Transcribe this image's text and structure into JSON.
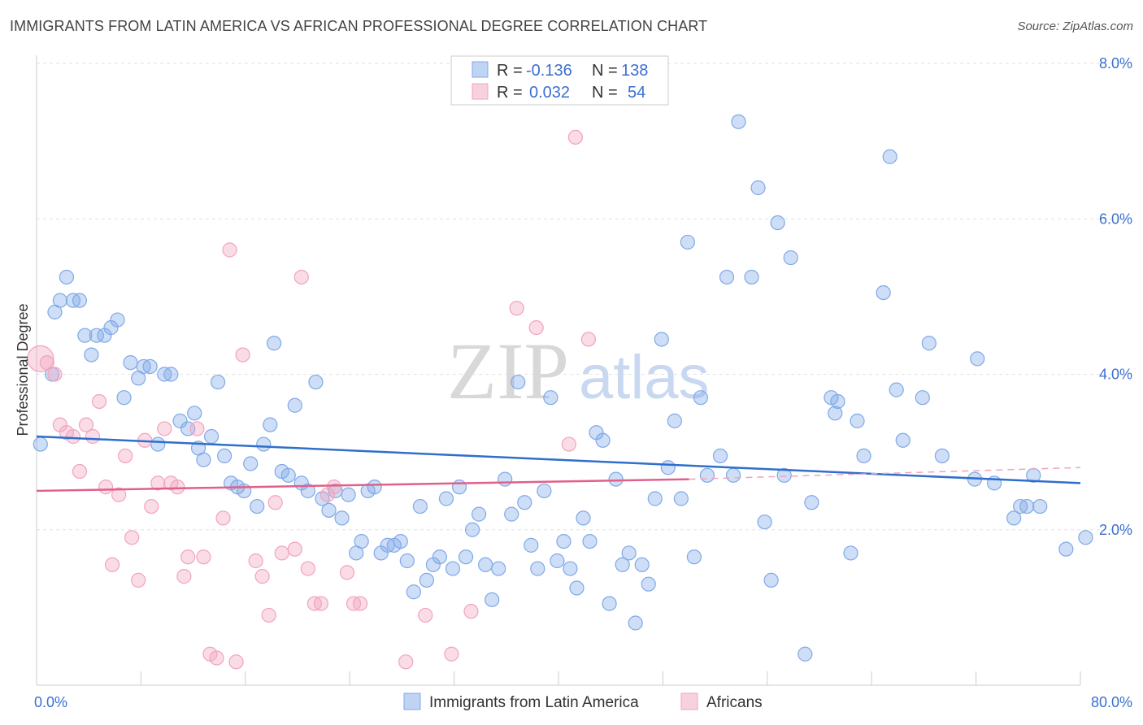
{
  "header": {
    "title": "IMMIGRANTS FROM LATIN AMERICA VS AFRICAN PROFESSIONAL DEGREE CORRELATION CHART",
    "source": "Source: ZipAtlas.com"
  },
  "watermark": {
    "part1": "ZIP",
    "part2": "atlas"
  },
  "legend_top": {
    "rows": [
      {
        "r_label": "R =",
        "r_value": "-0.136",
        "n_label": "N =",
        "n_value": "138",
        "color": "#7fa9e8"
      },
      {
        "r_label": "R =",
        "r_value": "0.032",
        "n_label": "N =",
        "n_value": "54",
        "color": "#f2a3bd"
      }
    ]
  },
  "chart_data": {
    "type": "scatter",
    "title": "IMMIGRANTS FROM LATIN AMERICA VS AFRICAN PROFESSIONAL DEGREE CORRELATION CHART",
    "xlabel": "",
    "ylabel": "Professional Degree",
    "xlim": [
      0,
      80
    ],
    "ylim": [
      0,
      8
    ],
    "x_tick_labels": [
      "0.0%",
      "80.0%"
    ],
    "y_ticks": [
      2,
      4,
      6,
      8
    ],
    "y_tick_labels": [
      "2.0%",
      "4.0%",
      "6.0%",
      "8.0%"
    ],
    "grid": true,
    "legend_position": "top-center",
    "series": [
      {
        "name": "Immigrants from Latin America",
        "color": "#7fa9e8",
        "line_color": "#2f6fcb",
        "trend": [
          [
            0,
            3.2
          ],
          [
            80,
            2.6
          ]
        ],
        "points": [
          [
            0.3,
            3.1
          ],
          [
            1.2,
            4.0
          ],
          [
            1.4,
            4.8
          ],
          [
            1.8,
            4.95
          ],
          [
            2.3,
            5.25
          ],
          [
            2.8,
            4.95
          ],
          [
            3.3,
            4.95
          ],
          [
            3.7,
            4.5
          ],
          [
            4.2,
            4.25
          ],
          [
            4.6,
            4.5
          ],
          [
            5.2,
            4.5
          ],
          [
            5.7,
            4.6
          ],
          [
            6.2,
            4.7
          ],
          [
            6.7,
            3.7
          ],
          [
            7.2,
            4.15
          ],
          [
            7.8,
            3.95
          ],
          [
            8.2,
            4.1
          ],
          [
            8.7,
            4.1
          ],
          [
            9.3,
            3.1
          ],
          [
            9.8,
            4.0
          ],
          [
            10.3,
            4.0
          ],
          [
            11.0,
            3.4
          ],
          [
            11.6,
            3.3
          ],
          [
            12.1,
            3.5
          ],
          [
            12.4,
            3.05
          ],
          [
            12.8,
            2.9
          ],
          [
            13.4,
            3.2
          ],
          [
            13.9,
            3.9
          ],
          [
            14.4,
            2.95
          ],
          [
            14.9,
            2.6
          ],
          [
            15.4,
            2.55
          ],
          [
            15.9,
            2.5
          ],
          [
            16.4,
            2.85
          ],
          [
            16.9,
            2.3
          ],
          [
            17.4,
            3.1
          ],
          [
            17.9,
            3.35
          ],
          [
            18.2,
            4.4
          ],
          [
            18.8,
            2.75
          ],
          [
            19.3,
            2.7
          ],
          [
            19.8,
            3.6
          ],
          [
            20.3,
            2.6
          ],
          [
            20.8,
            2.5
          ],
          [
            21.4,
            3.9
          ],
          [
            21.9,
            2.4
          ],
          [
            22.4,
            2.25
          ],
          [
            22.9,
            2.5
          ],
          [
            23.4,
            2.15
          ],
          [
            23.9,
            2.45
          ],
          [
            24.5,
            1.7
          ],
          [
            24.9,
            1.85
          ],
          [
            25.4,
            2.5
          ],
          [
            25.9,
            2.55
          ],
          [
            26.4,
            1.7
          ],
          [
            26.9,
            1.8
          ],
          [
            27.4,
            1.8
          ],
          [
            27.9,
            1.85
          ],
          [
            28.4,
            1.6
          ],
          [
            28.9,
            1.2
          ],
          [
            29.4,
            2.3
          ],
          [
            29.9,
            1.35
          ],
          [
            30.4,
            1.55
          ],
          [
            30.9,
            1.65
          ],
          [
            31.4,
            2.4
          ],
          [
            31.9,
            1.5
          ],
          [
            32.4,
            2.55
          ],
          [
            32.9,
            1.65
          ],
          [
            33.4,
            2.0
          ],
          [
            33.9,
            2.2
          ],
          [
            34.4,
            1.55
          ],
          [
            34.9,
            1.1
          ],
          [
            35.4,
            1.5
          ],
          [
            35.9,
            2.65
          ],
          [
            36.4,
            2.2
          ],
          [
            36.9,
            3.9
          ],
          [
            37.4,
            2.35
          ],
          [
            37.9,
            1.8
          ],
          [
            38.4,
            1.5
          ],
          [
            38.9,
            2.5
          ],
          [
            39.4,
            3.7
          ],
          [
            39.9,
            1.6
          ],
          [
            40.4,
            1.85
          ],
          [
            40.9,
            1.5
          ],
          [
            41.4,
            1.25
          ],
          [
            41.9,
            2.15
          ],
          [
            42.4,
            1.85
          ],
          [
            42.9,
            3.25
          ],
          [
            43.4,
            3.15
          ],
          [
            43.9,
            1.05
          ],
          [
            44.4,
            2.65
          ],
          [
            44.9,
            1.55
          ],
          [
            45.4,
            1.7
          ],
          [
            45.9,
            0.8
          ],
          [
            46.4,
            1.55
          ],
          [
            46.9,
            1.3
          ],
          [
            47.4,
            2.4
          ],
          [
            47.9,
            4.45
          ],
          [
            48.4,
            2.8
          ],
          [
            48.9,
            3.4
          ],
          [
            49.4,
            2.4
          ],
          [
            49.9,
            5.7
          ],
          [
            50.4,
            1.65
          ],
          [
            50.9,
            3.7
          ],
          [
            51.4,
            2.7
          ],
          [
            52.4,
            2.95
          ],
          [
            52.9,
            5.25
          ],
          [
            53.4,
            2.7
          ],
          [
            53.8,
            7.25
          ],
          [
            54.8,
            5.25
          ],
          [
            55.3,
            6.4
          ],
          [
            55.8,
            2.1
          ],
          [
            56.3,
            1.35
          ],
          [
            56.8,
            5.95
          ],
          [
            57.3,
            2.7
          ],
          [
            57.8,
            5.5
          ],
          [
            58.9,
            0.4
          ],
          [
            59.4,
            2.35
          ],
          [
            60.9,
            3.7
          ],
          [
            61.2,
            3.5
          ],
          [
            61.4,
            3.65
          ],
          [
            62.4,
            1.7
          ],
          [
            62.9,
            3.4
          ],
          [
            63.4,
            2.95
          ],
          [
            64.9,
            5.05
          ],
          [
            65.4,
            6.8
          ],
          [
            65.9,
            3.8
          ],
          [
            66.4,
            3.15
          ],
          [
            67.9,
            3.7
          ],
          [
            68.4,
            4.4
          ],
          [
            69.4,
            2.95
          ],
          [
            71.9,
            2.65
          ],
          [
            72.1,
            4.2
          ],
          [
            73.4,
            2.6
          ],
          [
            74.9,
            2.15
          ],
          [
            75.4,
            2.3
          ],
          [
            75.9,
            2.3
          ],
          [
            76.4,
            2.7
          ],
          [
            76.9,
            2.3
          ],
          [
            78.9,
            1.75
          ],
          [
            80.4,
            1.9
          ]
        ]
      },
      {
        "name": "Africans",
        "color": "#f2a3bd",
        "line_color": "#e0608a",
        "trend": [
          [
            0,
            2.5
          ],
          [
            50,
            2.65
          ]
        ],
        "trend_dashed": [
          [
            50,
            2.65
          ],
          [
            80,
            2.8
          ]
        ],
        "points": [
          [
            0.3,
            4.2
          ],
          [
            0.8,
            4.15
          ],
          [
            1.4,
            4.0
          ],
          [
            1.8,
            3.35
          ],
          [
            2.3,
            3.25
          ],
          [
            2.8,
            3.2
          ],
          [
            3.3,
            2.75
          ],
          [
            3.8,
            3.35
          ],
          [
            4.3,
            3.2
          ],
          [
            4.8,
            3.65
          ],
          [
            5.3,
            2.55
          ],
          [
            5.8,
            1.55
          ],
          [
            6.3,
            2.45
          ],
          [
            6.8,
            2.95
          ],
          [
            7.3,
            1.9
          ],
          [
            7.8,
            1.35
          ],
          [
            8.3,
            3.15
          ],
          [
            8.8,
            2.3
          ],
          [
            9.3,
            2.6
          ],
          [
            9.8,
            3.3
          ],
          [
            10.3,
            2.6
          ],
          [
            10.8,
            2.55
          ],
          [
            11.3,
            1.4
          ],
          [
            11.6,
            1.65
          ],
          [
            12.3,
            3.3
          ],
          [
            12.8,
            1.65
          ],
          [
            13.3,
            0.4
          ],
          [
            13.8,
            0.35
          ],
          [
            14.3,
            2.15
          ],
          [
            14.8,
            5.6
          ],
          [
            15.3,
            0.3
          ],
          [
            15.8,
            4.25
          ],
          [
            16.8,
            1.6
          ],
          [
            17.3,
            1.4
          ],
          [
            17.8,
            0.9
          ],
          [
            18.3,
            2.35
          ],
          [
            18.8,
            1.7
          ],
          [
            19.8,
            1.75
          ],
          [
            20.3,
            5.25
          ],
          [
            20.8,
            1.5
          ],
          [
            21.3,
            1.05
          ],
          [
            21.8,
            1.05
          ],
          [
            22.3,
            2.45
          ],
          [
            22.8,
            2.55
          ],
          [
            23.8,
            1.45
          ],
          [
            24.3,
            1.05
          ],
          [
            24.8,
            1.05
          ],
          [
            28.3,
            0.3
          ],
          [
            29.8,
            0.9
          ],
          [
            31.8,
            0.4
          ],
          [
            33.3,
            0.95
          ],
          [
            36.8,
            4.85
          ],
          [
            38.3,
            4.6
          ],
          [
            40.8,
            3.1
          ],
          [
            41.3,
            7.05
          ],
          [
            42.3,
            4.45
          ]
        ]
      }
    ]
  }
}
